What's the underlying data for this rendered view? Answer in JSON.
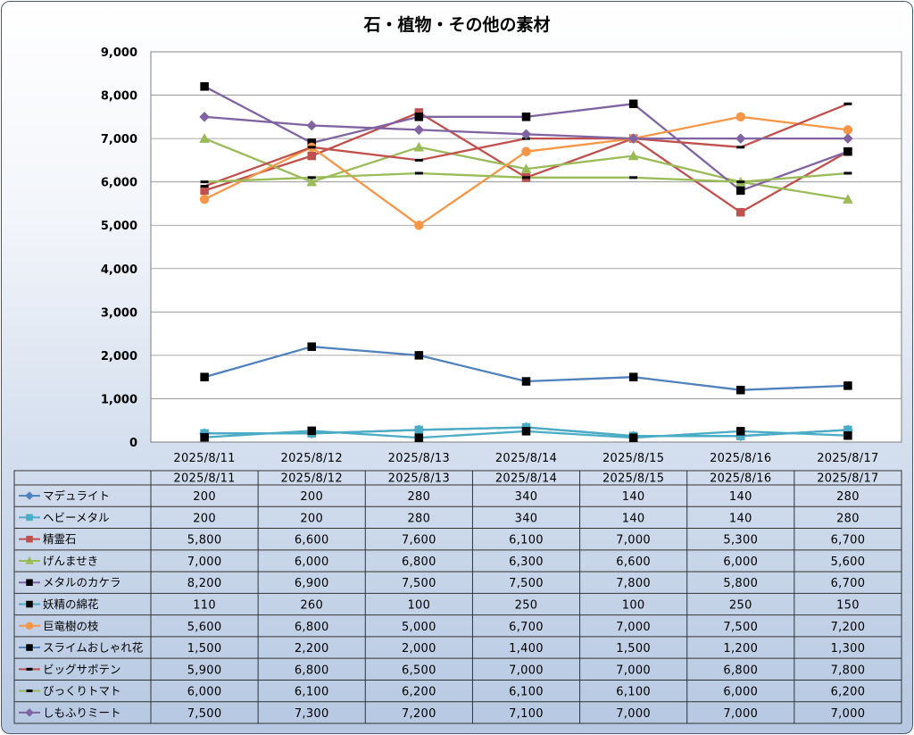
{
  "chart_data": {
    "type": "line",
    "title": "石・植物・その他の素材",
    "categories": [
      "2025/8/11",
      "2025/8/12",
      "2025/8/13",
      "2025/8/14",
      "2025/8/15",
      "2025/8/16",
      "2025/8/17"
    ],
    "y_ticks": [
      "0",
      "1,000",
      "2,000",
      "3,000",
      "4,000",
      "5,000",
      "6,000",
      "7,000",
      "8,000",
      "9,000"
    ],
    "ylim": [
      0,
      9000
    ],
    "grid": true,
    "legend": "data-table",
    "series": [
      {
        "name": "マデュライト",
        "color": "#4f81bd",
        "marker": "diamond",
        "values": [
          200,
          200,
          280,
          340,
          140,
          140,
          280
        ],
        "labels": [
          "200",
          "200",
          "280",
          "340",
          "140",
          "140",
          "280"
        ]
      },
      {
        "name": "ヘビーメタル",
        "color": "#4bacc6",
        "marker": "square",
        "values": [
          200,
          200,
          280,
          340,
          140,
          140,
          280
        ],
        "labels": [
          "200",
          "200",
          "280",
          "340",
          "140",
          "140",
          "280"
        ]
      },
      {
        "name": "精霊石",
        "color": "#c0504d",
        "marker": "square",
        "values": [
          5800,
          6600,
          7600,
          6100,
          7000,
          5300,
          6700
        ],
        "labels": [
          "5,800",
          "6,600",
          "7,600",
          "6,100",
          "7,000",
          "5,300",
          "6,700"
        ]
      },
      {
        "name": "げんませき",
        "color": "#9bbb59",
        "marker": "triangle",
        "values": [
          7000,
          6000,
          6800,
          6300,
          6600,
          6000,
          5600
        ],
        "labels": [
          "7,000",
          "6,000",
          "6,800",
          "6,300",
          "6,600",
          "6,000",
          "5,600"
        ]
      },
      {
        "name": "メタルのカケラ",
        "color": "#8064a2",
        "marker": "blacksquare",
        "values": [
          8200,
          6900,
          7500,
          7500,
          7800,
          5800,
          6700
        ],
        "labels": [
          "8,200",
          "6,900",
          "7,500",
          "7,500",
          "7,800",
          "5,800",
          "6,700"
        ]
      },
      {
        "name": "妖精の綿花",
        "color": "#4bacc6",
        "marker": "blacksquare",
        "values": [
          110,
          260,
          100,
          250,
          100,
          250,
          150
        ],
        "labels": [
          "110",
          "260",
          "100",
          "250",
          "100",
          "250",
          "150"
        ]
      },
      {
        "name": "巨竜樹の枝",
        "color": "#f79646",
        "marker": "circle",
        "values": [
          5600,
          6800,
          5000,
          6700,
          7000,
          7500,
          7200
        ],
        "labels": [
          "5,600",
          "6,800",
          "5,000",
          "6,700",
          "7,000",
          "7,500",
          "7,200"
        ]
      },
      {
        "name": "スライムおしゃれ花",
        "color": "#4f81bd",
        "marker": "blacksquare",
        "values": [
          1500,
          2200,
          2000,
          1400,
          1500,
          1200,
          1300
        ],
        "labels": [
          "1,500",
          "2,200",
          "2,000",
          "1,400",
          "1,500",
          "1,200",
          "1,300"
        ]
      },
      {
        "name": "ビッグサボテン",
        "color": "#c0504d",
        "marker": "dash",
        "values": [
          5900,
          6800,
          6500,
          7000,
          7000,
          6800,
          7800
        ],
        "labels": [
          "5,900",
          "6,800",
          "6,500",
          "7,000",
          "7,000",
          "6,800",
          "7,800"
        ]
      },
      {
        "name": "びっくりトマト",
        "color": "#9bbb59",
        "marker": "dash",
        "values": [
          6000,
          6100,
          6200,
          6100,
          6100,
          6000,
          6200
        ],
        "labels": [
          "6,000",
          "6,100",
          "6,200",
          "6,100",
          "6,100",
          "6,000",
          "6,200"
        ]
      },
      {
        "name": "しもふりミート",
        "color": "#8064a2",
        "marker": "diamond",
        "values": [
          7500,
          7300,
          7200,
          7100,
          7000,
          7000,
          7000
        ],
        "labels": [
          "7,500",
          "7,300",
          "7,200",
          "7,100",
          "7,000",
          "7,000",
          "7,000"
        ]
      }
    ]
  }
}
